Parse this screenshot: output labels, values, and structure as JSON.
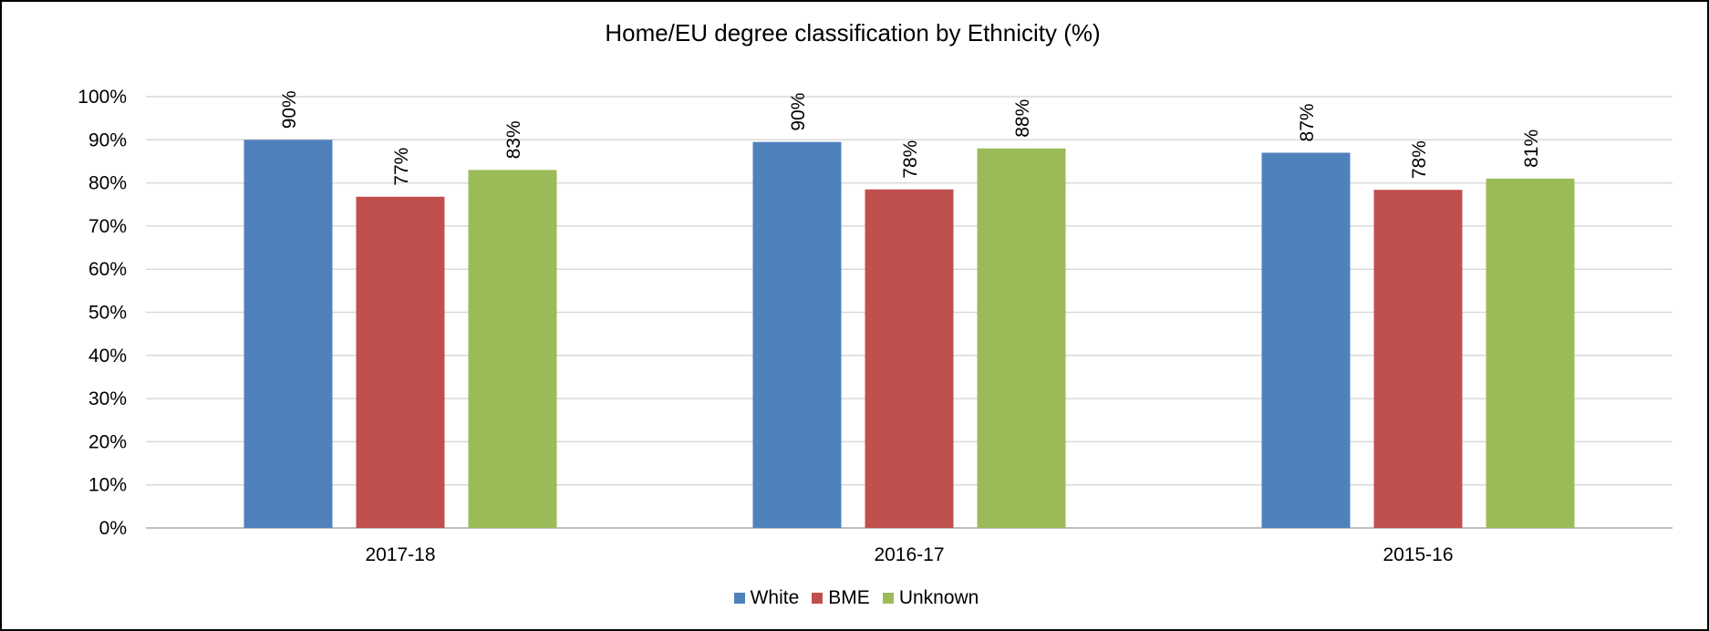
{
  "chart_data": {
    "type": "bar",
    "title": "Home/EU degree classification by Ethnicity (%)",
    "xlabel": "",
    "ylabel": "",
    "categories": [
      "2017-18",
      "2016-17",
      "2015-16"
    ],
    "series": [
      {
        "name": "White",
        "color": "#4F81BD",
        "values": [
          90,
          89.5,
          87
        ],
        "labels": [
          "90%",
          "90%",
          "87%"
        ]
      },
      {
        "name": "BME",
        "color": "#C0504D",
        "values": [
          76.8,
          78.5,
          78.4
        ],
        "labels": [
          "77%",
          "78%",
          "78%"
        ]
      },
      {
        "name": "Unknown",
        "color": "#9BBB59",
        "values": [
          83,
          88,
          81
        ],
        "labels": [
          "83%",
          "88%",
          "81%"
        ]
      }
    ],
    "y_ticks": [
      "0%",
      "10%",
      "20%",
      "30%",
      "40%",
      "50%",
      "60%",
      "70%",
      "80%",
      "90%",
      "100%"
    ],
    "ylim": [
      0,
      100
    ],
    "grid": true,
    "legend_position": "bottom"
  }
}
